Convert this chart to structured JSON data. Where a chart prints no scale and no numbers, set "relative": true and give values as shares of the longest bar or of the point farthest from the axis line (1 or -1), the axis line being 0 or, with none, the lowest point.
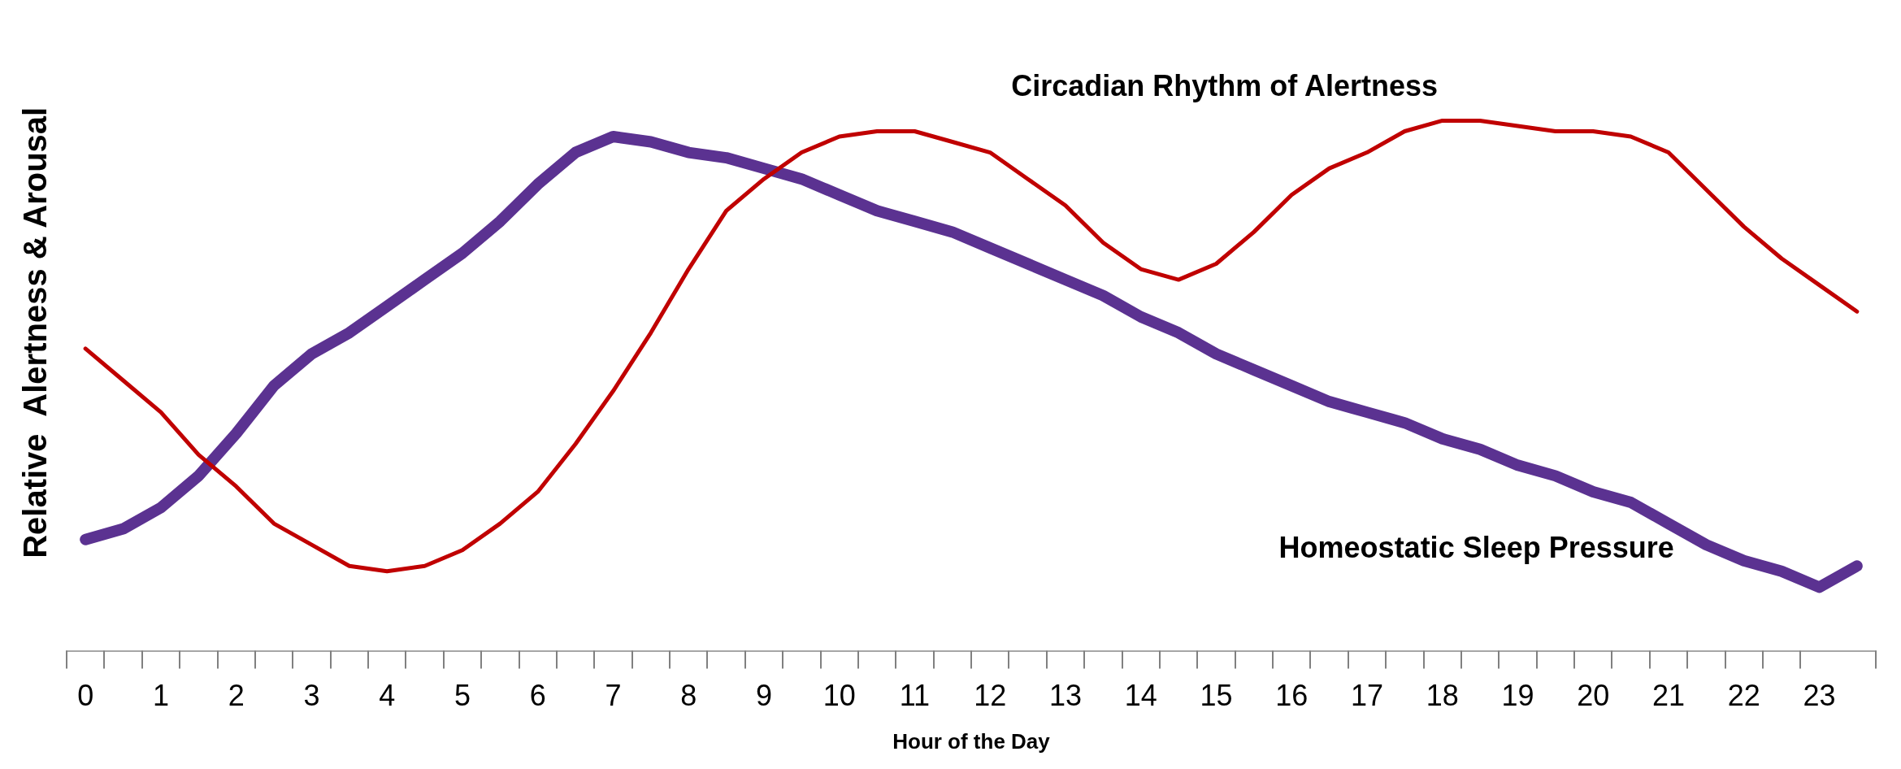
{
  "chart_data": {
    "type": "line",
    "relative": true,
    "xlabel": "Hour of the Day",
    "ylabel": "Relative  Alertness & Arousal",
    "x": [
      0,
      0.5,
      1,
      1.5,
      2,
      2.5,
      3,
      3.5,
      4,
      4.5,
      5,
      5.5,
      6,
      6.5,
      7,
      7.5,
      8,
      8.5,
      9,
      9.5,
      10,
      10.5,
      11,
      11.5,
      12,
      12.5,
      13,
      13.5,
      14,
      14.5,
      15,
      15.5,
      16,
      16.5,
      17,
      17.5,
      18,
      18.5,
      19,
      19.5,
      20,
      20.5,
      21,
      21.5,
      22,
      22.5,
      23,
      23.5
    ],
    "xlim": [
      -0.25,
      23.75
    ],
    "xticks": [
      0,
      1,
      2,
      3,
      4,
      5,
      6,
      7,
      8,
      9,
      10,
      11,
      12,
      13,
      14,
      15,
      16,
      17,
      18,
      19,
      20,
      21,
      22,
      23
    ],
    "tick_labels": "x",
    "grid": false,
    "legend": false,
    "marker": "none",
    "line_style": "solid",
    "series": [
      {
        "name": "Circadian Rhythm of Alertness",
        "color": "#c00000",
        "values": [
          0.57,
          0.51,
          0.45,
          0.37,
          0.31,
          0.24,
          0.2,
          0.16,
          0.15,
          0.16,
          0.19,
          0.24,
          0.3,
          0.39,
          0.49,
          0.6,
          0.72,
          0.83,
          0.89,
          0.94,
          0.97,
          0.98,
          0.98,
          0.96,
          0.94,
          0.89,
          0.84,
          0.77,
          0.72,
          0.7,
          0.73,
          0.79,
          0.86,
          0.91,
          0.94,
          0.98,
          1,
          1,
          0.99,
          0.98,
          0.98,
          0.97,
          0.94,
          0.87,
          0.8,
          0.74,
          0.69,
          0.64
        ]
      },
      {
        "name": "Homeostatic Sleep Pressure",
        "color": "#5b3291",
        "values": [
          0.21,
          0.23,
          0.27,
          0.33,
          0.41,
          0.5,
          0.56,
          0.6,
          0.65,
          0.7,
          0.75,
          0.81,
          0.88,
          0.94,
          0.97,
          0.96,
          0.94,
          0.93,
          0.91,
          0.89,
          0.86,
          0.83,
          0.81,
          0.79,
          0.76,
          0.73,
          0.7,
          0.67,
          0.63,
          0.6,
          0.56,
          0.53,
          0.5,
          0.47,
          0.45,
          0.43,
          0.4,
          0.38,
          0.35,
          0.33,
          0.3,
          0.28,
          0.24,
          0.2,
          0.17,
          0.15,
          0.12,
          0.16
        ]
      }
    ]
  }
}
